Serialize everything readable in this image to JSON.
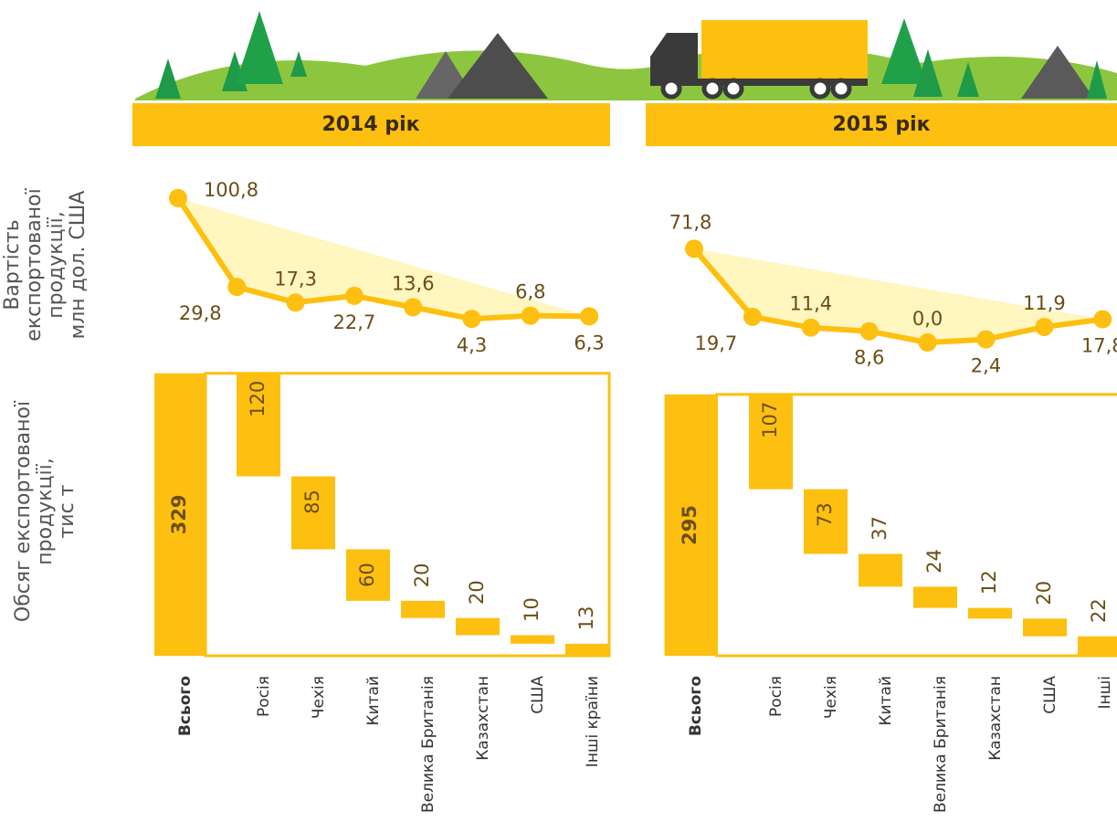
{
  "side_labels": {
    "value": [
      "Вартість",
      "експортованої",
      "продукції,",
      "млн дол. США"
    ],
    "volume": [
      "Обсяг експортованої",
      "продукції,",
      "тис т"
    ]
  },
  "chart_data": [
    {
      "type": "line",
      "title": "2014 рік",
      "color": "#fdc010",
      "values": [
        100.8,
        29.8,
        17.3,
        22.7,
        13.6,
        4.3,
        6.8,
        6.3
      ],
      "value_labels": [
        "100,8",
        "29,8",
        "17,3",
        "22,7",
        "13,6",
        "4,3",
        "6,8",
        "6,3"
      ]
    },
    {
      "type": "waterfall",
      "color": "#fdc010",
      "categories": [
        "Всього",
        "Росія",
        "Чехія",
        "Китай",
        "Велика Британія",
        "Казахстан",
        "США",
        "Інші країни"
      ],
      "values": [
        329,
        120,
        85,
        60,
        20,
        20,
        10,
        13
      ]
    },
    {
      "type": "line",
      "title": "2015 рік",
      "color": "#fdc010",
      "values": [
        71.8,
        19.7,
        11.4,
        8.6,
        0.0,
        2.4,
        11.9,
        17.8
      ],
      "value_labels": [
        "71,8",
        "19,7",
        "11,4",
        "8,6",
        "0,0",
        "2,4",
        "11,9",
        "17,8"
      ]
    },
    {
      "type": "waterfall",
      "color": "#fdc010",
      "categories": [
        "Всього",
        "Росія",
        "Чехія",
        "Китай",
        "Велика Британія",
        "Казахстан",
        "США",
        "Інші"
      ],
      "values": [
        295,
        107,
        73,
        37,
        24,
        12,
        20,
        22
      ]
    }
  ]
}
